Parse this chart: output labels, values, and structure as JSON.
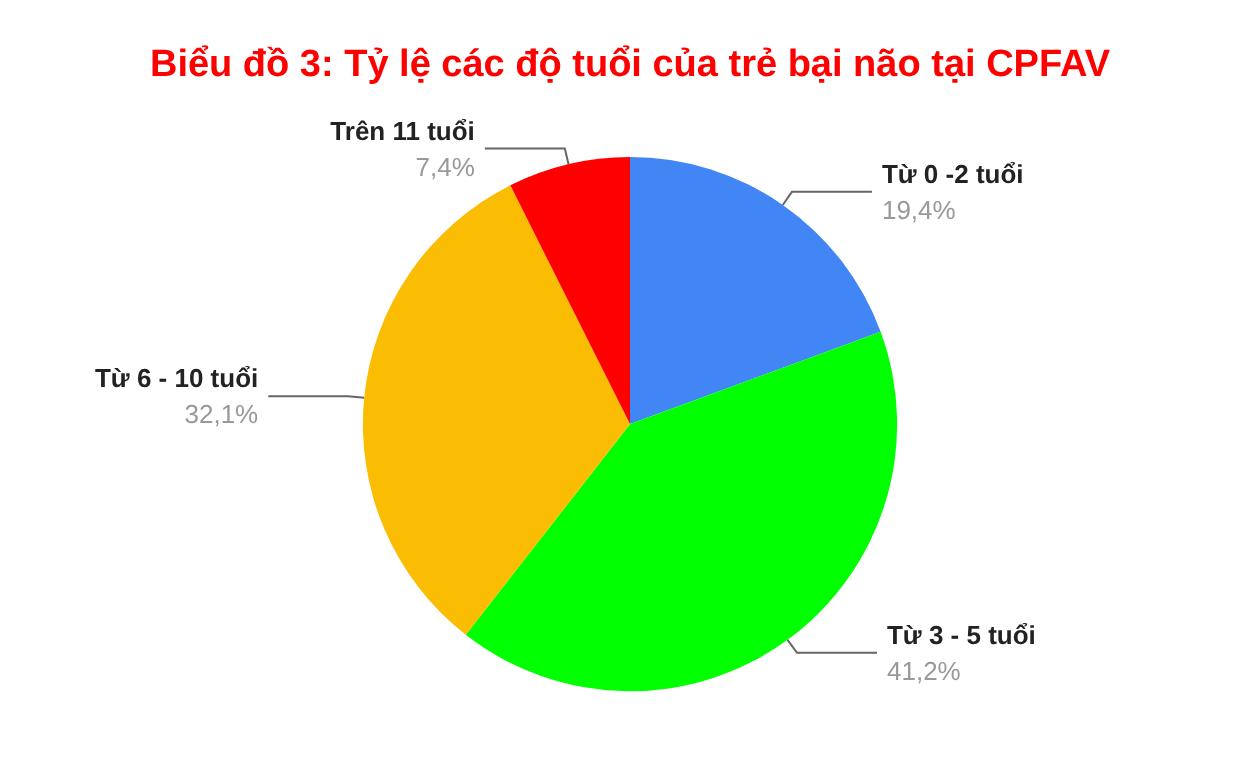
{
  "chart_data": {
    "type": "pie",
    "title": "Biểu đồ 3: Tỷ lệ các độ tuổi của trẻ bại não tại CPFAV",
    "categories": [
      "Từ 0 -2 tuổi",
      "Từ 3 - 5 tuổi",
      "Từ 6 - 10 tuổi",
      "Trên 11 tuổi"
    ],
    "values": [
      19.4,
      41.2,
      32.1,
      7.4
    ],
    "value_labels": [
      "19,4%",
      "41,2%",
      "32,1%",
      "7,4%"
    ],
    "colors": [
      "#4285f4",
      "#00ff00",
      "#fbbc04",
      "#ff0000"
    ],
    "legend": false
  }
}
